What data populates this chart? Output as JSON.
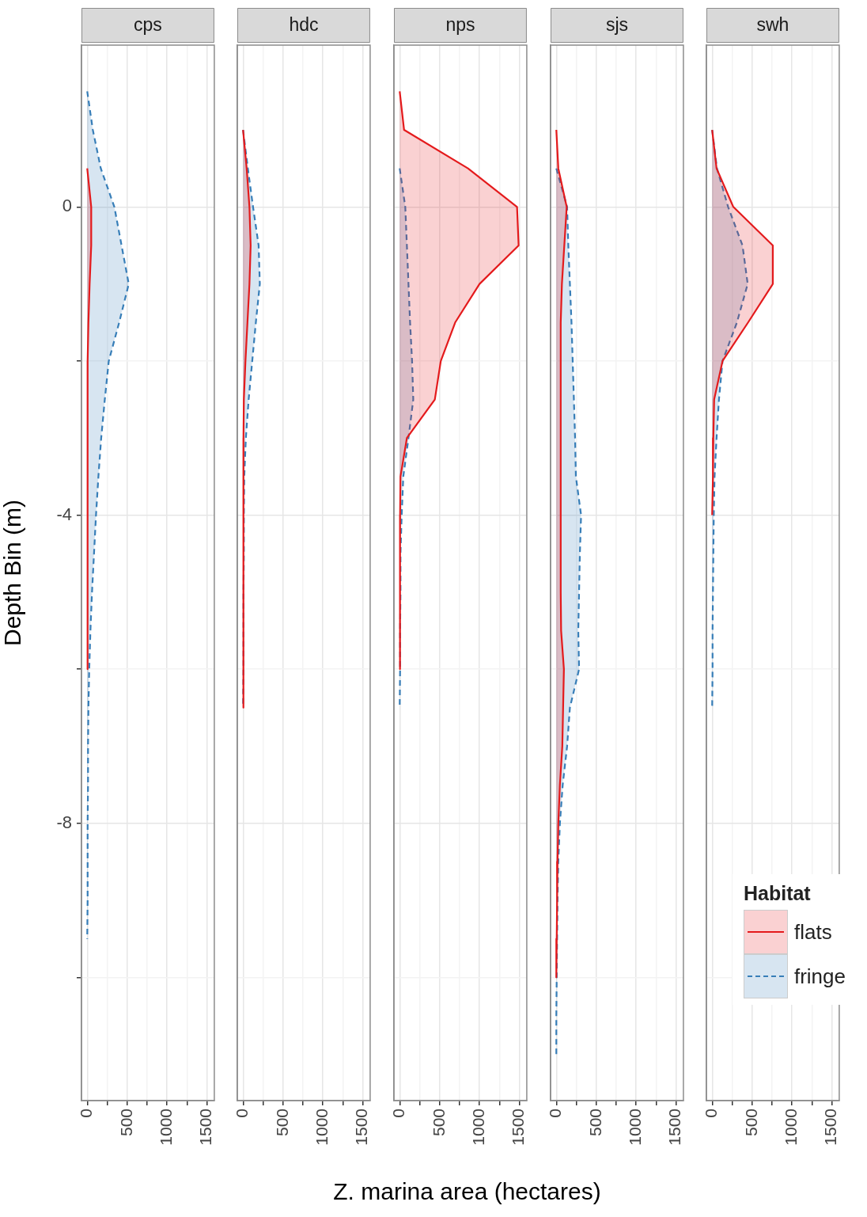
{
  "chart_data": [
    {
      "type": "area",
      "title": "cps",
      "orientation": "horizontal",
      "ylabel": "Depth Bin (m)",
      "xlim": [
        -72,
        1592
      ],
      "xticks": [
        0,
        {
          "value": 250,
          "label": null
        },
        500,
        {
          "value": 750,
          "label": null
        },
        1000,
        {
          "value": 1250,
          "label": null
        },
        1500
      ],
      "ylim": [
        -11.6,
        2.1
      ],
      "yticks": [
        {
          "value": -10,
          "label": null
        },
        -8,
        {
          "value": -6,
          "label": null
        },
        -4,
        {
          "value": -2,
          "label": null
        },
        0
      ],
      "grid": true,
      "legend": false,
      "series": [
        {
          "color": "#e41a1c",
          "line_style": "solid",
          "x": [
            0.5,
            0,
            -0.5,
            -1,
            -1.5,
            -2,
            -2.5,
            -3,
            -3.5,
            -4,
            -4.5,
            -5,
            -5.5,
            -6
          ],
          "values": [
            0,
            50,
            50,
            30,
            15,
            5,
            5,
            5,
            5,
            5,
            5,
            5,
            5,
            0
          ]
        },
        {
          "color": "#377eb8",
          "line_style": "dashed",
          "x": [
            1.5,
            1,
            0.5,
            0,
            -0.5,
            -1,
            -1.5,
            -2,
            -2.5,
            -3,
            -3.5,
            -4,
            -4.5,
            -5,
            -5.5,
            -6,
            -6.5,
            -7,
            -7.5,
            -8,
            -8.5,
            -9,
            -9.5
          ],
          "values": [
            0,
            70,
            170,
            340,
            430,
            520,
            400,
            270,
            220,
            175,
            140,
            110,
            85,
            60,
            40,
            25,
            15,
            10,
            10,
            5,
            5,
            5,
            0
          ]
        }
      ]
    },
    {
      "type": "area",
      "title": "hdc",
      "orientation": "horizontal",
      "tick_labels": "x",
      "xlim": [
        -72,
        1592
      ],
      "xticks": [
        0,
        {
          "value": 250,
          "label": null
        },
        500,
        {
          "value": 750,
          "label": null
        },
        1000,
        {
          "value": 1250,
          "label": null
        },
        1500
      ],
      "ylim": [
        -11.6,
        2.1
      ],
      "yticks": [
        {
          "value": -10,
          "label": null
        },
        -8,
        {
          "value": -6,
          "label": null
        },
        -4,
        {
          "value": -2,
          "label": null
        },
        0
      ],
      "grid": true,
      "legend": false,
      "series": [
        {
          "color": "#e41a1c",
          "line_style": "solid",
          "x": [
            1,
            0.5,
            0,
            -0.5,
            -1,
            -1.5,
            -2,
            -2.5,
            -3,
            -3.5,
            -4,
            -4.5,
            -5,
            -5.5,
            -6,
            -6.5
          ],
          "values": [
            0,
            45,
            80,
            95,
            80,
            55,
            30,
            10,
            5,
            5,
            5,
            5,
            5,
            5,
            5,
            0
          ]
        },
        {
          "color": "#377eb8",
          "line_style": "dashed",
          "x": [
            1,
            0.5,
            0,
            -0.5,
            -1,
            -1.5,
            -2,
            -2.5,
            -3,
            -3.5,
            -4,
            -4.5,
            -5,
            -5.5,
            -6,
            -6.5
          ],
          "values": [
            0,
            60,
            125,
            195,
            210,
            160,
            115,
            70,
            35,
            15,
            10,
            10,
            5,
            5,
            5,
            0
          ]
        }
      ]
    },
    {
      "type": "area",
      "title": "nps",
      "orientation": "horizontal",
      "tick_labels": "x",
      "xlabel": "Z. marina area (hectares)",
      "xlim": [
        -72,
        1592
      ],
      "xticks": [
        0,
        {
          "value": 250,
          "label": null
        },
        500,
        {
          "value": 750,
          "label": null
        },
        1000,
        {
          "value": 1250,
          "label": null
        },
        1500
      ],
      "ylim": [
        -11.6,
        2.1
      ],
      "yticks": [
        {
          "value": -10,
          "label": null
        },
        -8,
        {
          "value": -6,
          "label": null
        },
        -4,
        {
          "value": -2,
          "label": null
        },
        0
      ],
      "grid": true,
      "legend": false,
      "series": [
        {
          "color": "#e41a1c",
          "line_style": "solid",
          "x": [
            1.5,
            1,
            0.5,
            0,
            -0.5,
            -1,
            -1.5,
            -2,
            -2.5,
            -3,
            -3.5,
            -4,
            -4.5,
            -5,
            -5.5,
            -6
          ],
          "values": [
            0,
            55,
            855,
            1470,
            1490,
            1000,
            695,
            515,
            440,
            90,
            10,
            5,
            5,
            5,
            5,
            0
          ]
        },
        {
          "color": "#377eb8",
          "line_style": "dashed",
          "x": [
            0.5,
            0,
            -0.5,
            -1,
            -1.5,
            -2,
            -2.5,
            -3,
            -3.5,
            -4,
            -4.5,
            -5,
            -5.5,
            -6,
            -6.5
          ],
          "values": [
            0,
            70,
            90,
            110,
            130,
            155,
            170,
            110,
            45,
            25,
            10,
            10,
            5,
            5,
            0
          ]
        }
      ]
    },
    {
      "type": "area",
      "title": "sjs",
      "orientation": "horizontal",
      "tick_labels": "x",
      "xlim": [
        -72,
        1592
      ],
      "xticks": [
        0,
        {
          "value": 250,
          "label": null
        },
        500,
        {
          "value": 750,
          "label": null
        },
        1000,
        {
          "value": 1250,
          "label": null
        },
        1500
      ],
      "ylim": [
        -11.6,
        2.1
      ],
      "yticks": [
        {
          "value": -10,
          "label": null
        },
        -8,
        {
          "value": -6,
          "label": null
        },
        -4,
        {
          "value": -2,
          "label": null
        },
        0
      ],
      "grid": true,
      "legend": false,
      "series": [
        {
          "color": "#e41a1c",
          "line_style": "solid",
          "x": [
            1,
            0.5,
            0,
            -0.5,
            -1,
            -1.5,
            -2,
            -2.5,
            -3,
            -3.5,
            -4,
            -4.5,
            -5,
            -5.5,
            -6,
            -6.5,
            -7,
            -7.5,
            -8,
            -8.5,
            -9,
            -9.5,
            -10
          ],
          "values": [
            0,
            25,
            130,
            100,
            70,
            55,
            55,
            55,
            55,
            55,
            55,
            55,
            55,
            60,
            95,
            85,
            75,
            45,
            25,
            15,
            10,
            5,
            0
          ]
        },
        {
          "color": "#377eb8",
          "line_style": "dashed",
          "x": [
            0.5,
            0,
            -0.5,
            -1,
            -1.5,
            -2,
            -2.5,
            -3,
            -3.5,
            -4,
            -4.5,
            -5,
            -5.5,
            -6,
            -6.5,
            -7,
            -7.5,
            -8,
            -8.5,
            -9,
            -9.5,
            -10,
            -10.5,
            -11
          ],
          "values": [
            0,
            135,
            150,
            170,
            190,
            205,
            220,
            235,
            245,
            310,
            295,
            285,
            275,
            285,
            170,
            135,
            80,
            45,
            25,
            15,
            10,
            5,
            0,
            0
          ]
        }
      ]
    },
    {
      "type": "area",
      "title": "swh",
      "orientation": "horizontal",
      "tick_labels": "x",
      "xlim": [
        -72,
        1592
      ],
      "xticks": [
        0,
        {
          "value": 250,
          "label": null
        },
        500,
        {
          "value": 750,
          "label": null
        },
        1000,
        {
          "value": 1250,
          "label": null
        },
        1500
      ],
      "ylim": [
        -11.6,
        2.1
      ],
      "yticks": [
        {
          "value": -10,
          "label": null
        },
        -8,
        {
          "value": -6,
          "label": null
        },
        -4,
        {
          "value": -2,
          "label": null
        },
        0
      ],
      "grid": true,
      "legend": "bottom right",
      "legend_title": "Habitat",
      "series": [
        {
          "name": "flats",
          "color": "#e41a1c",
          "line_style": "solid",
          "x": [
            1,
            0.5,
            0,
            -0.5,
            -1,
            -1.5,
            -2,
            -2.5,
            -3,
            -3.5,
            -4
          ],
          "values": [
            0,
            55,
            265,
            760,
            760,
            450,
            130,
            25,
            15,
            10,
            0
          ]
        },
        {
          "name": "fringe",
          "color": "#377eb8",
          "line_style": "dashed",
          "x": [
            1,
            0.5,
            0,
            -0.5,
            -1,
            -1.5,
            -2,
            -2.5,
            -3,
            -3.5,
            -4,
            -4.5,
            -5,
            -5.5,
            -6,
            -6.5
          ],
          "values": [
            0,
            60,
            200,
            380,
            445,
            310,
            130,
            85,
            55,
            30,
            20,
            15,
            10,
            5,
            5,
            0
          ]
        }
      ]
    }
  ]
}
